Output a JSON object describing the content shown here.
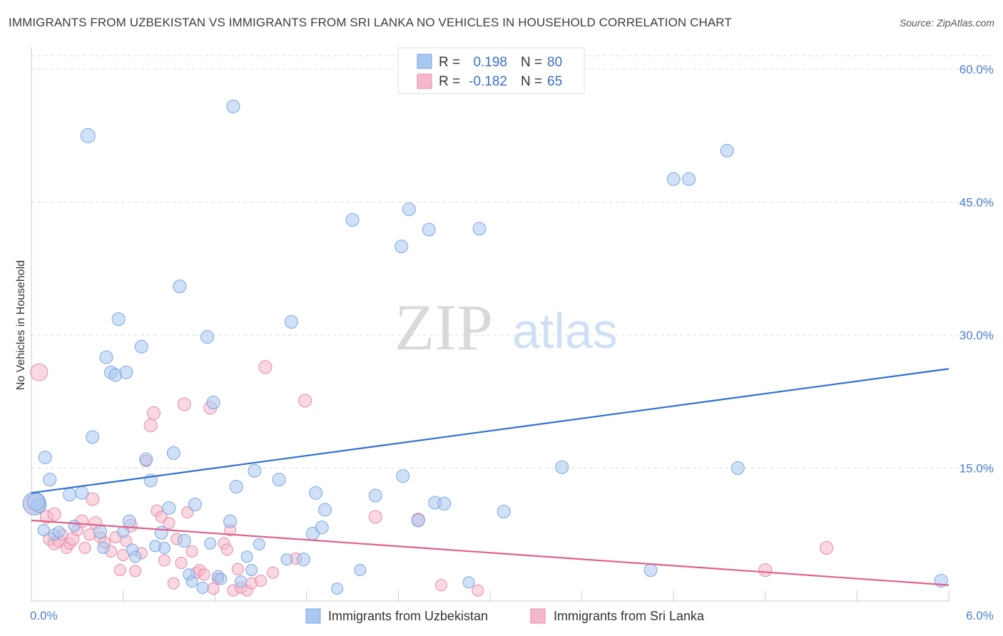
{
  "title": "IMMIGRANTS FROM UZBEKISTAN VS IMMIGRANTS FROM SRI LANKA NO VEHICLES IN HOUSEHOLD CORRELATION CHART",
  "source": "Source: ZipAtlas.com",
  "watermark": {
    "zip": "ZIP",
    "atlas": "atlas"
  },
  "legend": {
    "r_label": "R =",
    "n_label": "N =",
    "rows": [
      {
        "r": "0.198",
        "n": "80",
        "color": "#a9c8f0"
      },
      {
        "r": "-0.182",
        "n": "65",
        "color": "#f5b8cb"
      }
    ]
  },
  "chart_data": {
    "type": "scatter",
    "title": "IMMIGRANTS FROM UZBEKISTAN VS IMMIGRANTS FROM SRI LANKA NO VEHICLES IN HOUSEHOLD CORRELATION CHART",
    "xlabel": "",
    "ylabel": "No Vehicles in Household",
    "xlim": [
      0,
      6
    ],
    "ylim": [
      0,
      62
    ],
    "x_tick_labels": [
      "0.0%",
      "6.0%"
    ],
    "y_ticks": [
      15,
      30,
      45,
      60
    ],
    "y_tick_labels": [
      "15.0%",
      "30.0%",
      "45.0%",
      "60.0%"
    ],
    "grid": true,
    "legend_position": "top-center",
    "series": [
      {
        "name": "Immigrants from Uzbekistan",
        "color": "#a9c8f0",
        "stroke": "#7aa6e0",
        "trend": {
          "x": [
            0,
            6
          ],
          "y": [
            12.2,
            26.2
          ],
          "color": "#2f6fd1"
        },
        "points": [
          [
            0.02,
            11.0,
            16
          ],
          [
            0.05,
            10.8,
            10
          ],
          [
            0.08,
            8.0,
            8
          ],
          [
            0.09,
            16.2,
            9
          ],
          [
            0.12,
            13.7,
            9
          ],
          [
            0.15,
            7.5,
            8
          ],
          [
            0.18,
            7.8,
            8
          ],
          [
            0.25,
            12.0,
            9
          ],
          [
            0.28,
            8.5,
            8
          ],
          [
            0.33,
            12.2,
            9
          ],
          [
            0.37,
            52.5,
            10
          ],
          [
            0.4,
            18.5,
            9
          ],
          [
            0.45,
            7.8,
            9
          ],
          [
            0.47,
            6.0,
            8
          ],
          [
            0.49,
            27.5,
            9
          ],
          [
            0.52,
            25.8,
            9
          ],
          [
            0.55,
            25.5,
            9
          ],
          [
            0.57,
            31.8,
            9
          ],
          [
            0.6,
            7.8,
            8
          ],
          [
            0.62,
            25.8,
            9
          ],
          [
            0.64,
            9.0,
            9
          ],
          [
            0.66,
            5.8,
            8
          ],
          [
            0.68,
            5.0,
            8
          ],
          [
            0.72,
            28.7,
            9
          ],
          [
            0.75,
            16.0,
            9
          ],
          [
            0.78,
            13.6,
            9
          ],
          [
            0.81,
            6.2,
            8
          ],
          [
            0.85,
            7.7,
            9
          ],
          [
            0.87,
            6.0,
            8
          ],
          [
            0.9,
            10.5,
            9
          ],
          [
            0.93,
            16.7,
            9
          ],
          [
            0.97,
            35.5,
            9
          ],
          [
            1.0,
            6.8,
            9
          ],
          [
            1.03,
            3.0,
            8
          ],
          [
            1.05,
            2.2,
            8
          ],
          [
            1.07,
            10.9,
            9
          ],
          [
            1.12,
            1.5,
            8
          ],
          [
            1.15,
            29.8,
            9
          ],
          [
            1.17,
            6.5,
            8
          ],
          [
            1.19,
            22.4,
            9
          ],
          [
            1.22,
            2.8,
            8
          ],
          [
            1.24,
            2.5,
            8
          ],
          [
            1.3,
            9.0,
            9
          ],
          [
            1.32,
            55.8,
            9
          ],
          [
            1.34,
            12.9,
            9
          ],
          [
            1.37,
            2.2,
            8
          ],
          [
            1.41,
            5.0,
            8
          ],
          [
            1.44,
            3.5,
            8
          ],
          [
            1.46,
            14.7,
            9
          ],
          [
            1.49,
            6.4,
            8
          ],
          [
            1.62,
            13.7,
            9
          ],
          [
            1.67,
            4.7,
            8
          ],
          [
            1.7,
            31.5,
            9
          ],
          [
            1.78,
            4.7,
            9
          ],
          [
            1.84,
            7.6,
            9
          ],
          [
            1.86,
            12.2,
            9
          ],
          [
            1.9,
            8.3,
            9
          ],
          [
            1.92,
            10.3,
            9
          ],
          [
            2.0,
            1.4,
            8
          ],
          [
            2.1,
            43.0,
            9
          ],
          [
            2.15,
            3.5,
            8
          ],
          [
            2.25,
            11.9,
            9
          ],
          [
            2.42,
            40.0,
            9
          ],
          [
            2.43,
            14.1,
            9
          ],
          [
            2.47,
            44.2,
            9
          ],
          [
            2.53,
            9.1,
            9
          ],
          [
            2.6,
            41.9,
            9
          ],
          [
            2.64,
            11.1,
            9
          ],
          [
            2.7,
            11.0,
            9
          ],
          [
            2.86,
            2.1,
            8
          ],
          [
            2.93,
            42.0,
            9
          ],
          [
            3.09,
            10.1,
            9
          ],
          [
            3.47,
            15.1,
            9
          ],
          [
            4.05,
            3.5,
            9
          ],
          [
            4.2,
            47.6,
            9
          ],
          [
            4.3,
            47.6,
            9
          ],
          [
            4.55,
            50.8,
            9
          ],
          [
            4.62,
            15.0,
            9
          ],
          [
            5.95,
            2.3,
            9
          ],
          [
            0.03,
            11.2,
            12
          ]
        ]
      },
      {
        "name": "Immigrants from Sri Lanka",
        "color": "#f5b8cb",
        "stroke": "#e58aa6",
        "trend": {
          "x": [
            0,
            6
          ],
          "y": [
            9.1,
            1.8
          ],
          "color": "#e0608b"
        },
        "points": [
          [
            0.02,
            11.0,
            16
          ],
          [
            0.05,
            25.8,
            12
          ],
          [
            0.1,
            9.5,
            9
          ],
          [
            0.12,
            7.0,
            9
          ],
          [
            0.15,
            6.5,
            9
          ],
          [
            0.18,
            6.8,
            9
          ],
          [
            0.2,
            7.5,
            8
          ],
          [
            0.23,
            6.0,
            8
          ],
          [
            0.25,
            6.5,
            8
          ],
          [
            0.27,
            7.0,
            9
          ],
          [
            0.3,
            8.0,
            8
          ],
          [
            0.33,
            9.0,
            9
          ],
          [
            0.35,
            6.0,
            8
          ],
          [
            0.38,
            7.5,
            8
          ],
          [
            0.4,
            11.5,
            9
          ],
          [
            0.42,
            8.8,
            9
          ],
          [
            0.45,
            7.2,
            8
          ],
          [
            0.48,
            6.6,
            8
          ],
          [
            0.52,
            5.6,
            8
          ],
          [
            0.55,
            7.2,
            8
          ],
          [
            0.58,
            3.5,
            8
          ],
          [
            0.6,
            5.2,
            8
          ],
          [
            0.62,
            6.8,
            8
          ],
          [
            0.65,
            8.5,
            9
          ],
          [
            0.68,
            3.4,
            8
          ],
          [
            0.72,
            5.4,
            8
          ],
          [
            0.75,
            15.8,
            8
          ],
          [
            0.78,
            19.8,
            9
          ],
          [
            0.8,
            21.2,
            9
          ],
          [
            0.82,
            10.2,
            8
          ],
          [
            0.85,
            9.5,
            8
          ],
          [
            0.87,
            4.6,
            8
          ],
          [
            0.9,
            8.8,
            8
          ],
          [
            0.93,
            2.0,
            8
          ],
          [
            0.95,
            7.0,
            8
          ],
          [
            0.98,
            4.3,
            8
          ],
          [
            1.0,
            22.2,
            9
          ],
          [
            1.02,
            10.0,
            8
          ],
          [
            1.05,
            5.6,
            8
          ],
          [
            1.08,
            3.2,
            8
          ],
          [
            1.1,
            3.5,
            8
          ],
          [
            1.13,
            3.0,
            8
          ],
          [
            1.17,
            21.8,
            9
          ],
          [
            1.19,
            1.4,
            8
          ],
          [
            1.22,
            2.5,
            8
          ],
          [
            1.26,
            6.5,
            8
          ],
          [
            1.28,
            5.8,
            8
          ],
          [
            1.3,
            8.0,
            8
          ],
          [
            1.32,
            1.2,
            8
          ],
          [
            1.35,
            3.6,
            8
          ],
          [
            1.37,
            1.5,
            8
          ],
          [
            1.41,
            1.2,
            8
          ],
          [
            1.44,
            2.0,
            8
          ],
          [
            1.5,
            2.3,
            8
          ],
          [
            1.53,
            26.4,
            9
          ],
          [
            1.58,
            3.2,
            8
          ],
          [
            1.73,
            4.8,
            8
          ],
          [
            1.79,
            22.6,
            9
          ],
          [
            2.25,
            9.5,
            9
          ],
          [
            2.53,
            9.2,
            9
          ],
          [
            2.68,
            1.8,
            8
          ],
          [
            2.92,
            1.2,
            8
          ],
          [
            4.8,
            3.5,
            9
          ],
          [
            5.2,
            6.0,
            9
          ],
          [
            0.15,
            9.8,
            9
          ]
        ]
      }
    ]
  },
  "bottom_legend": [
    "Immigrants from Uzbekistan",
    "Immigrants from Sri Lanka"
  ]
}
